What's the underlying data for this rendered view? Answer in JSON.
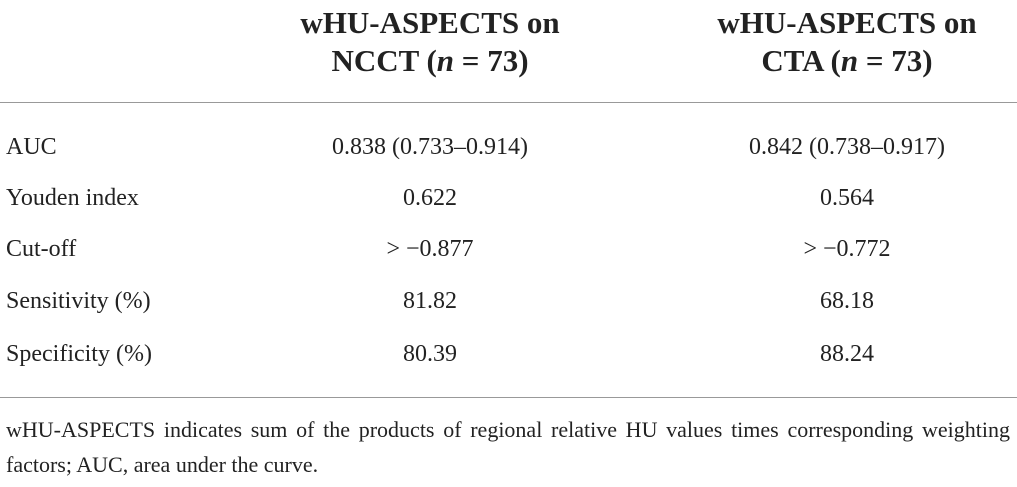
{
  "table": {
    "columns": [
      [
        "wHU-ASPECTS on NCCT (",
        "n",
        " = 73)"
      ],
      [
        "wHU-ASPECTS on CTA (",
        "n",
        " = 73)"
      ]
    ],
    "rows": [
      [
        "AUC",
        "0.838 (0.733–0.914)",
        "0.842 (0.738–0.917)"
      ],
      [
        "Youden index",
        "0.622",
        "0.564"
      ],
      [
        "Cut-off",
        "> −0.877",
        "> −0.772"
      ],
      [
        "Sensitivity (%)",
        "81.82",
        "68.18"
      ],
      [
        "Specificity (%)",
        "80.39",
        "88.24"
      ]
    ],
    "footnote": "wHU-ASPECTS indicates sum of the products of regional relative HU values times corresponding weighting factors; AUC, area under the curve."
  }
}
